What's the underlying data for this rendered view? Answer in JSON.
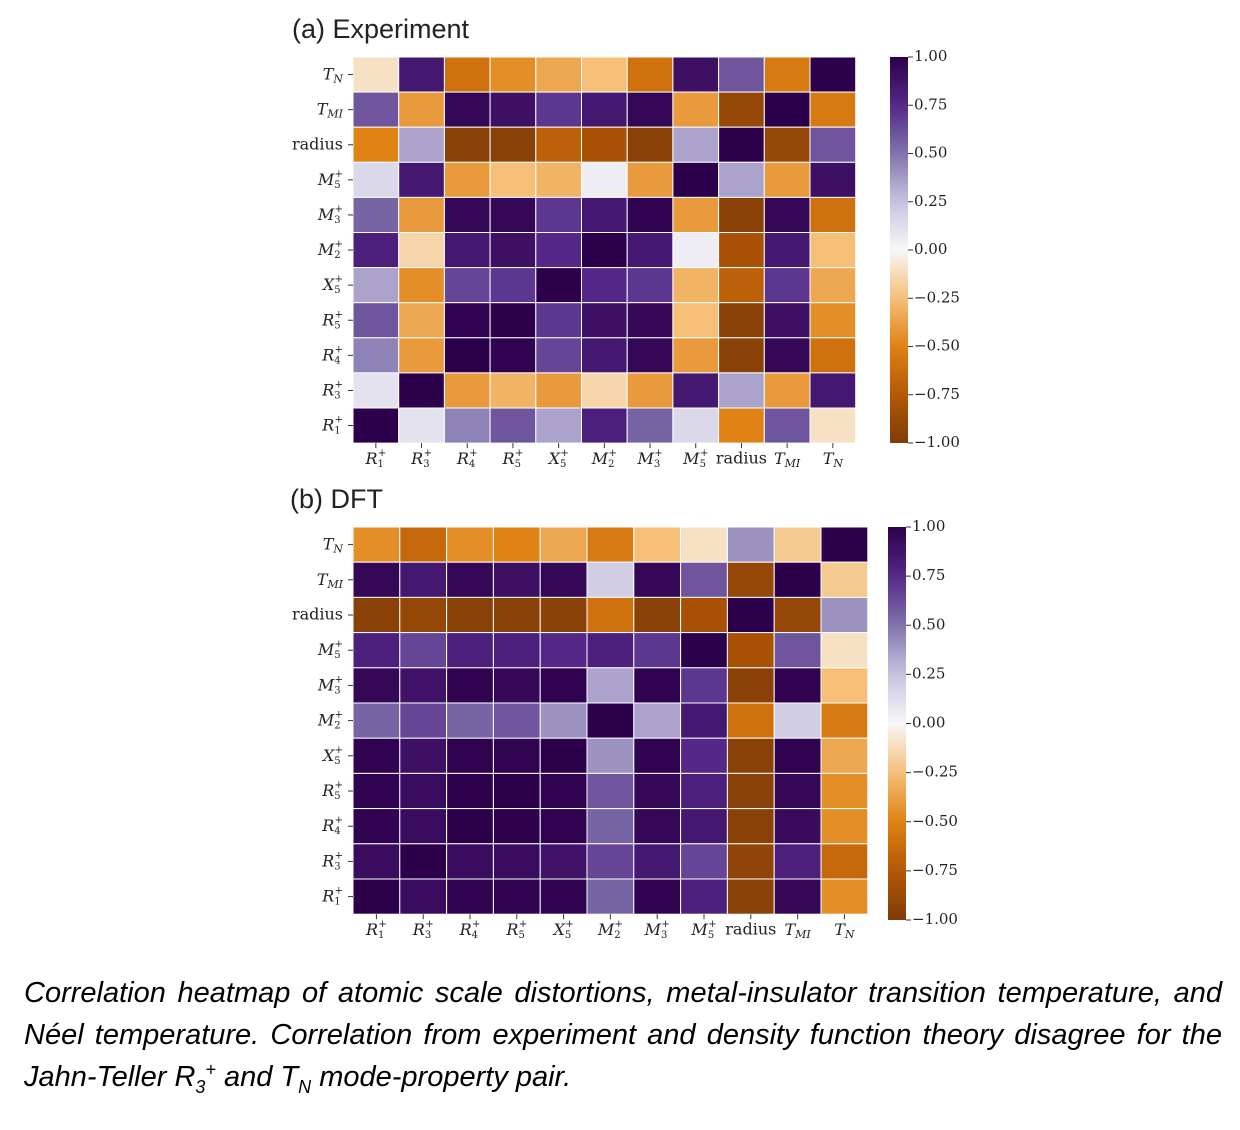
{
  "chart_data": [
    {
      "type": "heatmap",
      "title": "(a) Experiment",
      "rows": [
        "T_N",
        "T_MI",
        "radius",
        "M5+",
        "M3+",
        "M2+",
        "X5+",
        "R5+",
        "R4+",
        "R3+",
        "R1+"
      ],
      "columns": [
        "R1+",
        "R3+",
        "R4+",
        "R5+",
        "X5+",
        "M2+",
        "M3+",
        "M5+",
        "radius",
        "T_MI",
        "T_N"
      ],
      "values": [
        [
          -0.1,
          0.85,
          -0.6,
          -0.45,
          -0.35,
          -0.25,
          -0.6,
          0.9,
          0.6,
          -0.55,
          1.0
        ],
        [
          0.6,
          -0.4,
          0.95,
          0.9,
          0.7,
          0.85,
          0.95,
          -0.4,
          -0.9,
          1.0,
          -0.55
        ],
        [
          -0.5,
          0.35,
          -0.95,
          -0.95,
          -0.7,
          -0.8,
          -0.95,
          0.35,
          1.0,
          -0.9,
          0.6
        ],
        [
          0.15,
          0.85,
          -0.4,
          -0.25,
          -0.3,
          0.05,
          -0.4,
          1.0,
          0.35,
          -0.4,
          0.9
        ],
        [
          0.55,
          -0.4,
          0.95,
          0.95,
          0.7,
          0.85,
          0.98,
          -0.4,
          -0.95,
          0.95,
          -0.6
        ],
        [
          0.8,
          -0.15,
          0.85,
          0.9,
          0.75,
          1.0,
          0.85,
          0.05,
          -0.8,
          0.85,
          -0.25
        ],
        [
          0.35,
          -0.45,
          0.65,
          0.7,
          1.0,
          0.75,
          0.7,
          -0.3,
          -0.7,
          0.7,
          -0.35
        ],
        [
          0.6,
          -0.35,
          0.98,
          1.0,
          0.7,
          0.9,
          0.95,
          -0.25,
          -0.95,
          0.9,
          -0.45
        ],
        [
          0.45,
          -0.4,
          1.0,
          0.98,
          0.65,
          0.85,
          0.95,
          -0.4,
          -0.95,
          0.95,
          -0.6
        ],
        [
          0.1,
          1.0,
          -0.4,
          -0.3,
          -0.4,
          -0.15,
          -0.4,
          0.85,
          0.35,
          -0.4,
          0.85
        ],
        [
          1.0,
          0.1,
          0.45,
          0.6,
          0.35,
          0.8,
          0.55,
          0.15,
          -0.5,
          0.6,
          -0.1
        ]
      ],
      "zlim": [
        -1.0,
        1.0
      ],
      "colorbar_ticks": [
        "−1.00",
        "−0.75",
        "−0.50",
        "−0.25",
        "0.00",
        "0.25",
        "0.50",
        "0.75",
        "1.00"
      ],
      "colormap": "PuOr",
      "grid": true
    },
    {
      "type": "heatmap",
      "title": "(b) DFT",
      "rows": [
        "T_N",
        "T_MI",
        "radius",
        "M5+",
        "M3+",
        "M2+",
        "X5+",
        "R5+",
        "R4+",
        "R3+",
        "R1+"
      ],
      "columns": [
        "R1+",
        "R3+",
        "R4+",
        "R5+",
        "X5+",
        "M2+",
        "M3+",
        "M5+",
        "radius",
        "T_MI",
        "T_N"
      ],
      "values": [
        [
          -0.45,
          -0.65,
          -0.45,
          -0.5,
          -0.35,
          -0.55,
          -0.25,
          -0.1,
          0.4,
          -0.2,
          1.0
        ],
        [
          0.95,
          0.85,
          0.95,
          0.9,
          0.95,
          0.2,
          0.95,
          0.6,
          -0.9,
          1.0,
          -0.2
        ],
        [
          -0.95,
          -0.9,
          -0.95,
          -0.95,
          -0.95,
          -0.6,
          -0.95,
          -0.8,
          1.0,
          -0.9,
          0.4
        ],
        [
          0.8,
          0.65,
          0.8,
          0.8,
          0.75,
          0.8,
          0.7,
          1.0,
          -0.8,
          0.6,
          -0.1
        ],
        [
          0.95,
          0.88,
          0.98,
          0.95,
          0.98,
          0.35,
          0.98,
          0.7,
          -0.95,
          0.98,
          -0.25
        ],
        [
          0.55,
          0.65,
          0.55,
          0.6,
          0.4,
          1.0,
          0.35,
          0.85,
          -0.6,
          0.2,
          -0.55
        ],
        [
          0.98,
          0.9,
          0.98,
          0.97,
          1.0,
          0.4,
          0.98,
          0.75,
          -0.95,
          0.98,
          -0.35
        ],
        [
          0.98,
          0.92,
          0.99,
          1.0,
          0.98,
          0.6,
          0.95,
          0.8,
          -0.95,
          0.95,
          -0.45
        ],
        [
          0.98,
          0.92,
          1.0,
          0.99,
          0.98,
          0.55,
          0.95,
          0.85,
          -0.95,
          0.93,
          -0.45
        ],
        [
          0.92,
          1.0,
          0.92,
          0.92,
          0.88,
          0.65,
          0.85,
          0.65,
          -0.92,
          0.8,
          -0.65
        ],
        [
          1.0,
          0.92,
          0.98,
          0.98,
          0.98,
          0.55,
          0.98,
          0.8,
          -0.95,
          0.95,
          -0.45
        ]
      ],
      "zlim": [
        -1.0,
        1.0
      ],
      "colorbar_ticks": [
        "−1.00",
        "−0.75",
        "−0.50",
        "−0.25",
        "0.00",
        "0.25",
        "0.50",
        "0.75",
        "1.00"
      ],
      "colormap": "PuOr",
      "grid": true
    }
  ],
  "caption": {
    "part1": "Correlation heatmap of atomic scale distortions, metal-insulator transition temperature, and Néel temperature. Correlation from experiment and density function theory disagree for the Jahn-Teller R",
    "r_sub": "3",
    "r_sup": "+",
    "part2": " and T",
    "t_sub": "N",
    "part3": " mode-property pair."
  }
}
